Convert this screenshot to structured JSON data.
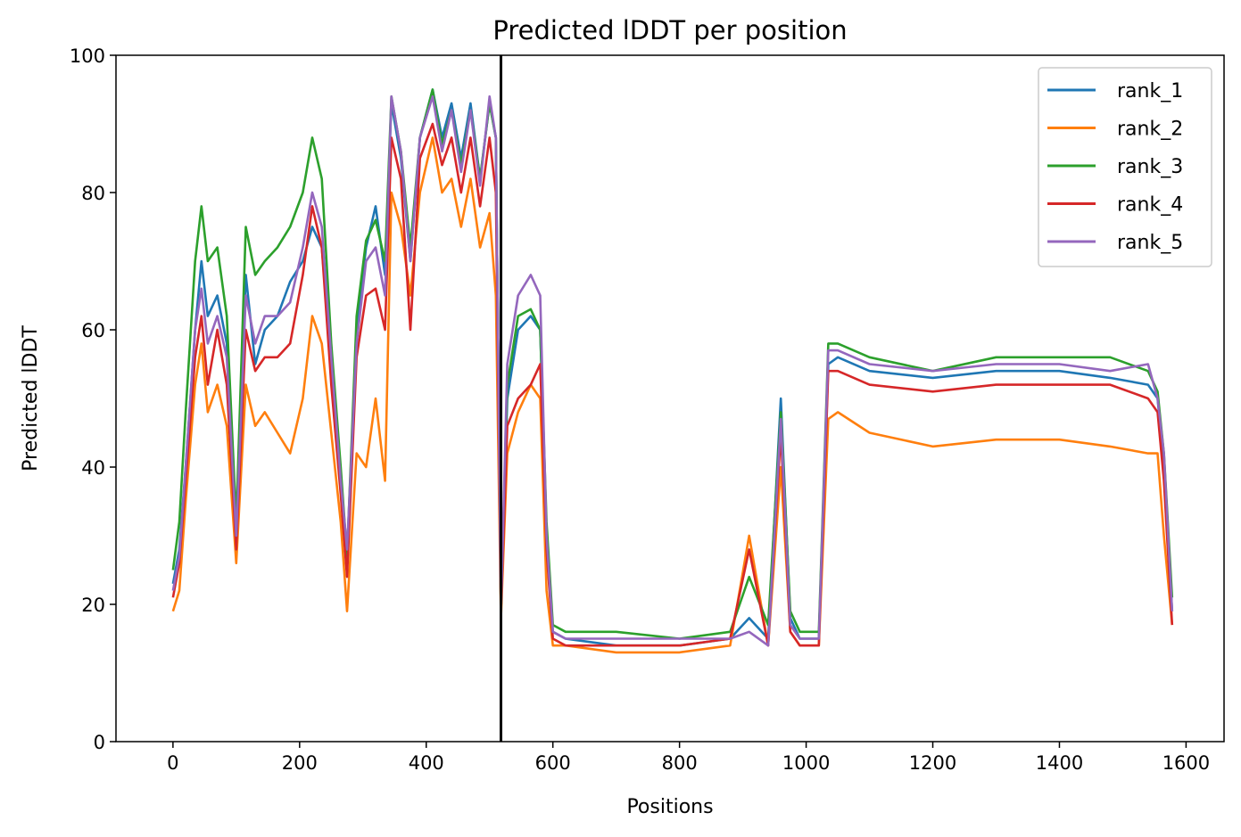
{
  "chart_data": {
    "type": "line",
    "title": "Predicted lDDT per position",
    "xlabel": "Positions",
    "ylabel": "Predicted lDDT",
    "xlim": [
      -90,
      1660
    ],
    "ylim": [
      0,
      100
    ],
    "xticks": [
      0,
      200,
      400,
      600,
      800,
      1000,
      1200,
      1400,
      1600
    ],
    "yticks": [
      0,
      20,
      40,
      60,
      80,
      100
    ],
    "legend_position": "top-right",
    "vline_x": 518,
    "series": [
      {
        "name": "rank_1",
        "color": "#1f77b4",
        "x": [
          0,
          10,
          20,
          35,
          45,
          55,
          70,
          85,
          100,
          115,
          130,
          145,
          165,
          185,
          205,
          220,
          235,
          250,
          265,
          275,
          290,
          305,
          320,
          335,
          345,
          360,
          375,
          390,
          410,
          425,
          440,
          455,
          470,
          485,
          500,
          510,
          518,
          528,
          545,
          565,
          580,
          590,
          600,
          620,
          700,
          800,
          880,
          910,
          940,
          960,
          975,
          990,
          1020,
          1035,
          1050,
          1100,
          1200,
          1300,
          1400,
          1480,
          1540,
          1555,
          1565,
          1578
        ],
        "y": [
          23,
          28,
          40,
          60,
          70,
          62,
          65,
          58,
          30,
          68,
          55,
          60,
          62,
          67,
          70,
          75,
          72,
          55,
          38,
          25,
          60,
          72,
          78,
          68,
          93,
          85,
          70,
          88,
          95,
          88,
          93,
          85,
          93,
          82,
          93,
          88,
          19,
          50,
          60,
          62,
          60,
          30,
          16,
          15,
          14,
          14,
          15,
          18,
          15,
          50,
          18,
          15,
          15,
          55,
          56,
          54,
          53,
          54,
          54,
          53,
          52,
          50,
          40,
          19
        ]
      },
      {
        "name": "rank_2",
        "color": "#ff7f0e",
        "x": [
          0,
          10,
          20,
          35,
          45,
          55,
          70,
          85,
          100,
          115,
          130,
          145,
          165,
          185,
          205,
          220,
          235,
          250,
          265,
          275,
          290,
          305,
          320,
          335,
          345,
          360,
          375,
          390,
          410,
          425,
          440,
          455,
          470,
          485,
          500,
          510,
          518,
          528,
          545,
          565,
          580,
          590,
          600,
          620,
          700,
          800,
          880,
          910,
          940,
          960,
          975,
          990,
          1020,
          1035,
          1050,
          1100,
          1200,
          1300,
          1400,
          1480,
          1540,
          1555,
          1565,
          1578
        ],
        "y": [
          19,
          22,
          35,
          52,
          58,
          48,
          52,
          46,
          26,
          52,
          46,
          48,
          45,
          42,
          50,
          62,
          58,
          45,
          32,
          19,
          42,
          40,
          50,
          38,
          80,
          75,
          65,
          80,
          88,
          80,
          82,
          75,
          82,
          72,
          77,
          65,
          18,
          42,
          48,
          52,
          50,
          22,
          14,
          14,
          13,
          13,
          14,
          30,
          14,
          40,
          16,
          14,
          14,
          47,
          48,
          45,
          43,
          44,
          44,
          43,
          42,
          42,
          30,
          17
        ]
      },
      {
        "name": "rank_3",
        "color": "#2ca02c",
        "x": [
          0,
          10,
          20,
          35,
          45,
          55,
          70,
          85,
          100,
          115,
          130,
          145,
          165,
          185,
          205,
          220,
          235,
          250,
          265,
          275,
          290,
          305,
          320,
          335,
          345,
          360,
          375,
          390,
          410,
          425,
          440,
          455,
          470,
          485,
          500,
          510,
          518,
          528,
          545,
          565,
          580,
          590,
          600,
          620,
          700,
          800,
          880,
          910,
          940,
          960,
          975,
          990,
          1020,
          1035,
          1050,
          1100,
          1200,
          1300,
          1400,
          1480,
          1540,
          1555,
          1565,
          1578
        ],
        "y": [
          25,
          32,
          48,
          70,
          78,
          70,
          72,
          62,
          32,
          75,
          68,
          70,
          72,
          75,
          80,
          88,
          82,
          58,
          40,
          27,
          62,
          73,
          76,
          70,
          94,
          86,
          72,
          88,
          95,
          87,
          92,
          84,
          92,
          82,
          93,
          88,
          19,
          52,
          62,
          63,
          60,
          32,
          17,
          16,
          16,
          15,
          16,
          24,
          17,
          48,
          19,
          16,
          16,
          58,
          58,
          56,
          54,
          56,
          56,
          56,
          54,
          51,
          42,
          21
        ]
      },
      {
        "name": "rank_4",
        "color": "#d62728",
        "x": [
          0,
          10,
          20,
          35,
          45,
          55,
          70,
          85,
          100,
          115,
          130,
          145,
          165,
          185,
          205,
          220,
          235,
          250,
          265,
          275,
          290,
          305,
          320,
          335,
          345,
          360,
          375,
          390,
          410,
          425,
          440,
          455,
          470,
          485,
          500,
          510,
          518,
          528,
          545,
          565,
          580,
          590,
          600,
          620,
          700,
          800,
          880,
          910,
          940,
          960,
          975,
          990,
          1020,
          1035,
          1050,
          1100,
          1200,
          1300,
          1400,
          1480,
          1540,
          1555,
          1565,
          1578
        ],
        "y": [
          21,
          26,
          38,
          56,
          62,
          52,
          60,
          52,
          28,
          60,
          54,
          56,
          56,
          58,
          68,
          78,
          72,
          52,
          36,
          24,
          56,
          65,
          66,
          60,
          88,
          82,
          60,
          85,
          90,
          84,
          88,
          80,
          88,
          78,
          88,
          80,
          19,
          46,
          50,
          52,
          55,
          28,
          15,
          14,
          14,
          14,
          15,
          28,
          14,
          45,
          16,
          14,
          14,
          54,
          54,
          52,
          51,
          52,
          52,
          52,
          50,
          48,
          38,
          17
        ]
      },
      {
        "name": "rank_5",
        "color": "#9467bd",
        "x": [
          0,
          10,
          20,
          35,
          45,
          55,
          70,
          85,
          100,
          115,
          130,
          145,
          165,
          185,
          205,
          220,
          235,
          250,
          265,
          275,
          290,
          305,
          320,
          335,
          345,
          360,
          375,
          390,
          410,
          425,
          440,
          455,
          470,
          485,
          500,
          510,
          518,
          528,
          545,
          565,
          580,
          590,
          600,
          620,
          700,
          800,
          880,
          910,
          940,
          960,
          975,
          990,
          1020,
          1035,
          1050,
          1100,
          1200,
          1300,
          1400,
          1480,
          1540,
          1555,
          1565,
          1578
        ],
        "y": [
          22,
          27,
          40,
          60,
          66,
          58,
          62,
          56,
          30,
          65,
          58,
          62,
          62,
          64,
          72,
          80,
          75,
          56,
          38,
          28,
          58,
          70,
          72,
          65,
          94,
          86,
          70,
          88,
          94,
          86,
          92,
          83,
          92,
          81,
          94,
          88,
          19,
          55,
          65,
          68,
          65,
          30,
          16,
          15,
          15,
          15,
          15,
          16,
          14,
          47,
          17,
          15,
          15,
          57,
          57,
          55,
          54,
          55,
          55,
          54,
          55,
          50,
          42,
          19
        ]
      }
    ]
  }
}
